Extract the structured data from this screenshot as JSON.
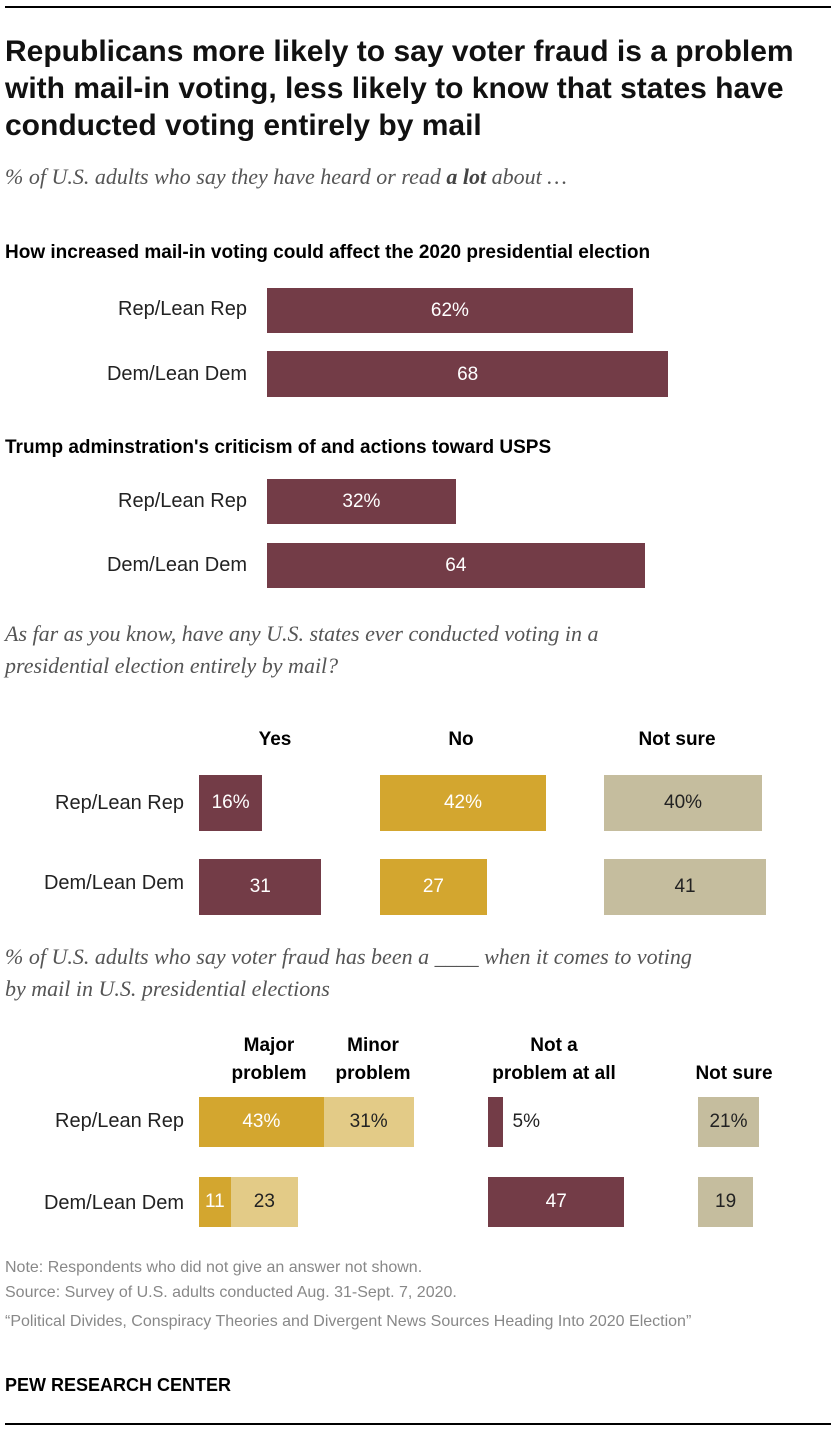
{
  "title": "Republicans more likely to say voter fraud is a problem with mail-in voting, less likely to know that states have conducted voting entirely by mail",
  "subtitle_prefix": "% of U.S. adults who say they have heard or read ",
  "subtitle_bold": "a lot",
  "subtitle_suffix": " about …",
  "colors": {
    "maroon": "#733c47",
    "gold": "#d3a62f",
    "light_gold": "#e3cb87",
    "tan": "#c5bd9e"
  },
  "chart_data": [
    {
      "type": "bar",
      "title": "How increased mail-in voting could affect the 2020 presidential election",
      "categories": [
        "Rep/Lean Rep",
        "Dem/Lean Dem"
      ],
      "values": [
        62,
        68
      ],
      "labels": [
        "62%",
        "68"
      ]
    },
    {
      "type": "bar",
      "title": "Trump adminstration's criticism of and actions toward USPS",
      "categories": [
        "Rep/Lean Rep",
        "Dem/Lean Dem"
      ],
      "values": [
        32,
        64
      ],
      "labels": [
        "32%",
        "64"
      ]
    },
    {
      "type": "bar",
      "title": "As far as you know, have any U.S. states ever conducted voting in a presidential election entirely by mail?",
      "categories": [
        "Rep/Lean Rep",
        "Dem/Lean Dem"
      ],
      "series": [
        {
          "name": "Yes",
          "values": [
            16,
            31
          ],
          "labels": [
            "16%",
            "31"
          ]
        },
        {
          "name": "No",
          "values": [
            42,
            27
          ],
          "labels": [
            "42%",
            "27"
          ]
        },
        {
          "name": "Not sure",
          "values": [
            40,
            41
          ],
          "labels": [
            "40%",
            "41"
          ]
        }
      ]
    },
    {
      "type": "bar",
      "title": "% of U.S. adults who say voter fraud has been a ____ when it comes to voting by mail in U.S. presidential elections",
      "categories": [
        "Rep/Lean Rep",
        "Dem/Lean Dem"
      ],
      "series": [
        {
          "name": "Major problem",
          "values": [
            43,
            11
          ],
          "labels": [
            "43%",
            "11"
          ]
        },
        {
          "name": "Minor problem",
          "values": [
            31,
            23
          ],
          "labels": [
            "31%",
            "23"
          ]
        },
        {
          "name": "Not a problem at all",
          "values": [
            5,
            47
          ],
          "labels": [
            "5%",
            "47"
          ]
        },
        {
          "name": "Not sure",
          "values": [
            21,
            19
          ],
          "labels": [
            "21%",
            "19"
          ]
        }
      ]
    }
  ],
  "section3": {
    "question_line1": "As far as you know, have any U.S. states ever conducted voting in a",
    "question_line2": "presidential election entirely by mail?"
  },
  "section4": {
    "question_line1": "% of U.S. adults who say voter fraud has been a ____ when it comes to voting",
    "question_line2": "by mail in U.S. presidential elections",
    "headers": {
      "major_1": "Major",
      "major_2": "problem",
      "minor_1": "Minor",
      "minor_2": "problem",
      "not_1": "Not a",
      "not_2": "problem at all",
      "not_sure": "Not sure"
    }
  },
  "notes": {
    "note": "Note: Respondents who did not give an answer not shown.",
    "source": "Source: Survey of U.S. adults conducted Aug. 31-Sept. 7, 2020.",
    "report": "“Political Divides, Conspiracy Theories and Divergent News Sources Heading Into 2020 Election”",
    "brand": "PEW RESEARCH CENTER"
  }
}
